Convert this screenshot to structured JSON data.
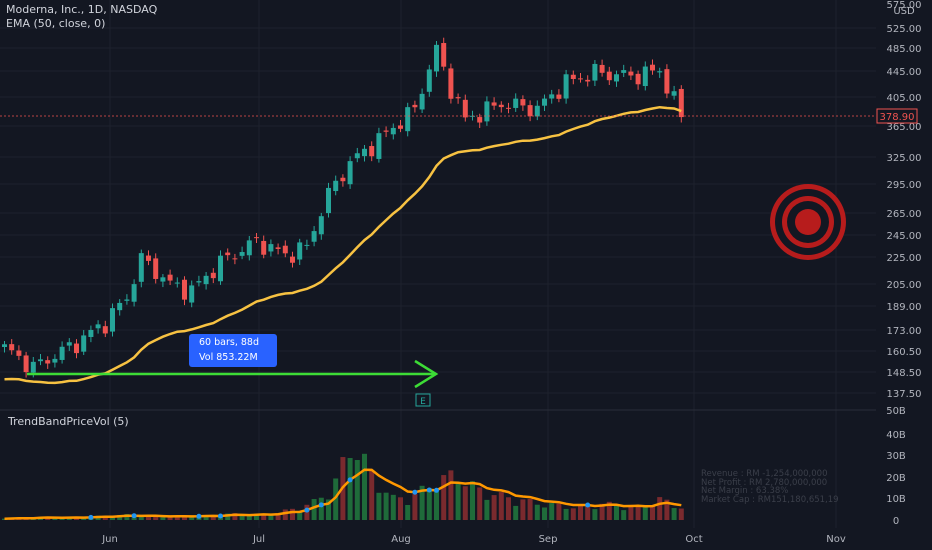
{
  "legend": {
    "symbol_line": "Moderna, Inc., 1D, NASDAQ",
    "ema_line": "EMA (50, close, 0)"
  },
  "volume_panel": {
    "title": "TrendBandPriceVol (5)"
  },
  "measure": {
    "line1": "60 bars, 88d",
    "line2": "Vol 853.22M"
  },
  "price_axis": {
    "currency": "USD",
    "labels": [
      "575.00",
      "525.00",
      "485.00",
      "445.00",
      "405.00",
      "365.00",
      "325.00",
      "295.00",
      "265.00",
      "245.00",
      "225.00",
      "205.00",
      "189.00",
      "173.00",
      "160.50",
      "148.50",
      "137.50"
    ],
    "last_price": "378.90"
  },
  "volume_axis": {
    "labels": [
      "50B",
      "40B",
      "30B",
      "20B",
      "10B",
      "0"
    ]
  },
  "time_axis": {
    "labels": [
      "Jun",
      "Jul",
      "Aug",
      "Sep",
      "Oct",
      "Nov"
    ]
  },
  "earnings_marker": "E",
  "fundamentals": [
    "Revenue : RM -1,254,000,000",
    "Net Profit : RM 2,780,000,000",
    "Net Margin : 63.38%",
    "Market Cap : RM151,180,651,19"
  ],
  "colors": {
    "background": "#131722",
    "up": "#26a69a",
    "down": "#ef5350",
    "ema": "#f7c242",
    "vol_line": "#ff9800",
    "arrow": "#3ddc36",
    "target": "#b71c1c"
  },
  "chart_data": {
    "type": "candlestick",
    "title": "Moderna, Inc., 1D, NASDAQ",
    "x_ticks": [
      "Jun",
      "Jul",
      "Aug",
      "Sep",
      "Oct",
      "Nov"
    ],
    "y_scale": "log",
    "ylim": [
      132,
      585
    ],
    "close_series_approx": [
      {
        "x": "May 14",
        "y": 162
      },
      {
        "x": "May 18",
        "y": 151
      },
      {
        "x": "May 21",
        "y": 158
      },
      {
        "x": "May 26",
        "y": 165
      },
      {
        "x": "Jun 1",
        "y": 178
      },
      {
        "x": "Jun 4",
        "y": 195
      },
      {
        "x": "Jun 8",
        "y": 225
      },
      {
        "x": "Jun 14",
        "y": 205
      },
      {
        "x": "Jun 18",
        "y": 200
      },
      {
        "x": "Jun 24",
        "y": 222
      },
      {
        "x": "Jul 1",
        "y": 240
      },
      {
        "x": "Jul 7",
        "y": 228
      },
      {
        "x": "Jul 12",
        "y": 235
      },
      {
        "x": "Jul 16",
        "y": 285
      },
      {
        "x": "Jul 20",
        "y": 320
      },
      {
        "x": "Jul 26",
        "y": 348
      },
      {
        "x": "Aug 2",
        "y": 390
      },
      {
        "x": "Aug 6",
        "y": 484
      },
      {
        "x": "Aug 9",
        "y": 420
      },
      {
        "x": "Aug 13",
        "y": 375
      },
      {
        "x": "Aug 20",
        "y": 398
      },
      {
        "x": "Aug 27",
        "y": 390
      },
      {
        "x": "Sep 2",
        "y": 430
      },
      {
        "x": "Sep 8",
        "y": 446
      },
      {
        "x": "Sep 15",
        "y": 440
      },
      {
        "x": "Sep 22",
        "y": 449
      },
      {
        "x": "Sep 27",
        "y": 379
      }
    ],
    "ema_50": {
      "name": "EMA (50, close, 0)",
      "last": 387
    },
    "last_price": 378.9,
    "volume_series_approx_B": [
      1,
      1,
      1.5,
      1,
      1.5,
      2,
      2.5,
      2,
      1.5,
      2,
      2,
      3,
      2.5,
      3,
      5,
      8,
      15,
      38,
      20,
      10,
      12,
      18,
      22,
      15,
      12,
      10,
      8,
      7,
      6,
      8,
      7,
      6,
      10,
      6
    ]
  }
}
